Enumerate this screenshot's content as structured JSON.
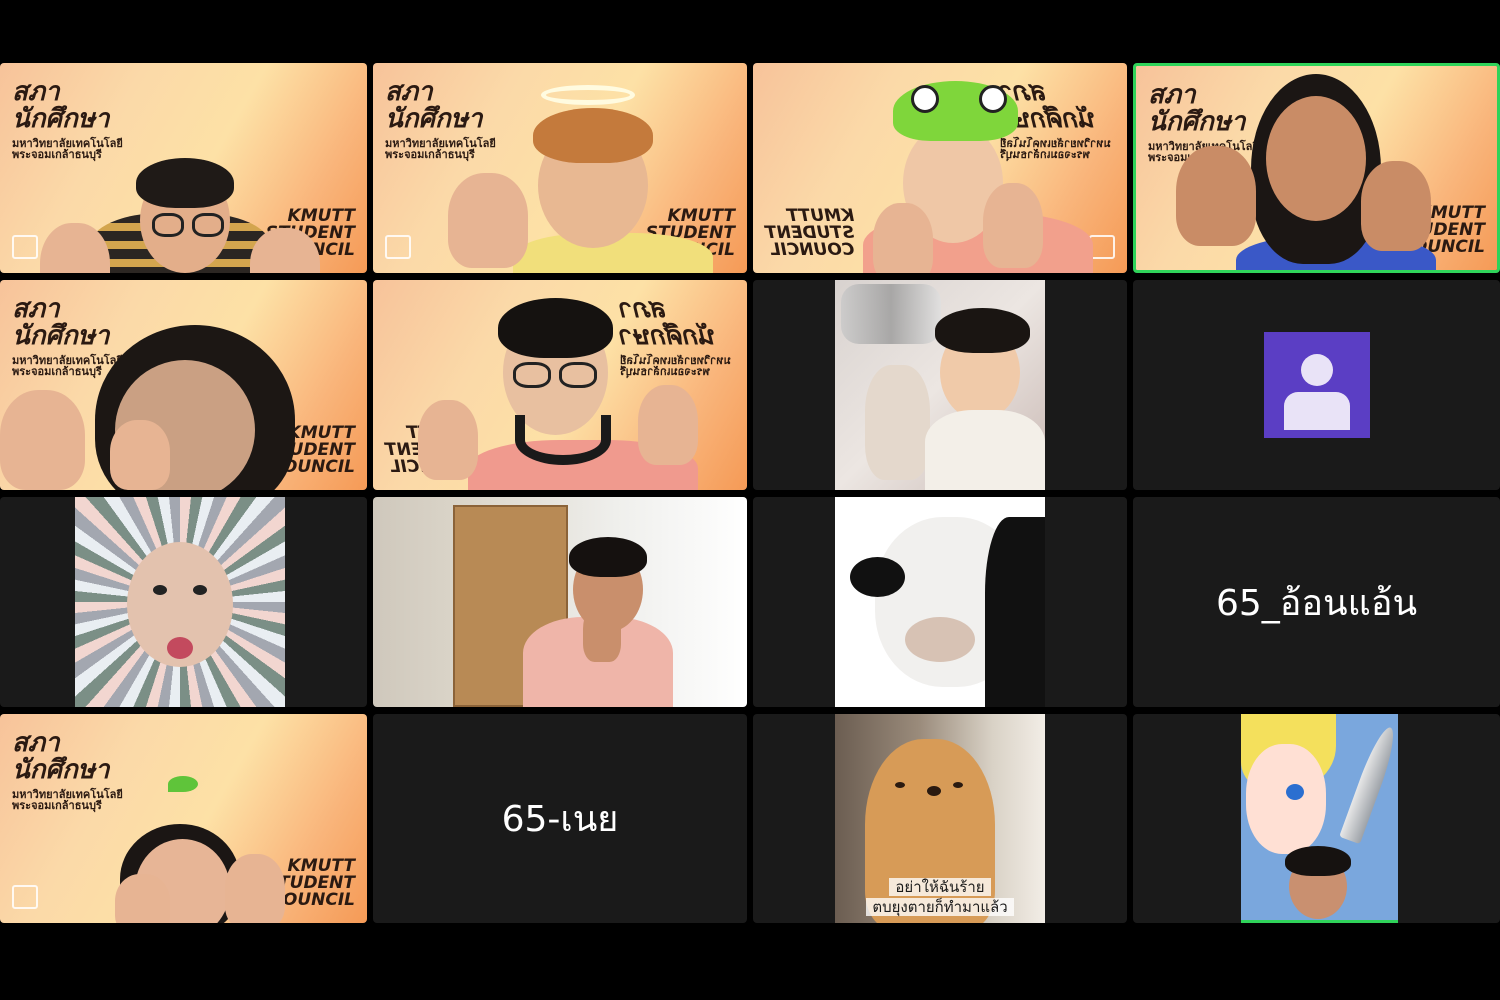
{
  "meeting": {
    "tiles": [
      {
        "id": "t1",
        "council_title": "สภา\nนักศึกษา",
        "council_sub": "มหาวิทยาลัยเทคโนโลยี\nพระจอมเกล้าธนบุรี",
        "badge": "KMUTT\nSTUDENT\nCOUNCIL"
      },
      {
        "id": "t2",
        "council_title": "สภา\nนักศึกษา",
        "council_sub": "มหาวิทยาลัยเทคโนโลยี\nพระจอมเกล้าธนบุรี",
        "badge": "KMUTT\nSTUDENT\nCOUNCIL"
      },
      {
        "id": "t3",
        "council_title": "สภา\nนักศึกษา",
        "council_sub": "มหาวิทยาลัยเทคโนโลยี\nพระจอมเกล้าธนบุรี",
        "badge": "KMUTT\nSTUDENT\nCOUNCIL"
      },
      {
        "id": "t4",
        "council_title": "สภา\nนักศึกษา",
        "council_sub": "มหาวิทยาลัยเทคโนโลยี\nพระจอมเกล้าธนบุรี",
        "badge": "KMUTT\nSTUDENT\nCOUNCIL",
        "active": true
      },
      {
        "id": "t5",
        "council_title": "สภา\nนักศึกษา",
        "council_sub": "มหาวิทยาลัยเทคโนโลยี\nพระจอมเกล้าธนบุรี",
        "badge": "KMUTT\nSTUDENT\nCOUNCIL"
      },
      {
        "id": "t6",
        "council_title": "สภา\nนักศึกษา",
        "council_sub": "มหาวิทยาลัยเทคโนโลยี\nพระจอมเกล้าธนบุรี",
        "badge": "KMUTT\nSTUDENT\nCOUNCIL"
      },
      {
        "id": "t13",
        "council_title": "สภา\nนักศึกษา",
        "council_sub": "มหาวิทยาลัยเทคโนโลยี\nพระจอมเกล้าธนบุรี",
        "badge": "KMUTT\nSTUDENT\nCOUNCIL"
      }
    ],
    "name_tiles": {
      "anon_aen": "65_อ้อนแอ้น",
      "noei": "65-เนย"
    },
    "dog_caption": {
      "line1": "อย่าให้ฉันร้าย",
      "line2": "ตบยุงตายก็ทำมาแล้ว"
    },
    "colors": {
      "background": "#000000",
      "tile": "#1a1a1a",
      "active_border": "#2fd35a",
      "avatar_bg": "#5b3ec4"
    }
  }
}
